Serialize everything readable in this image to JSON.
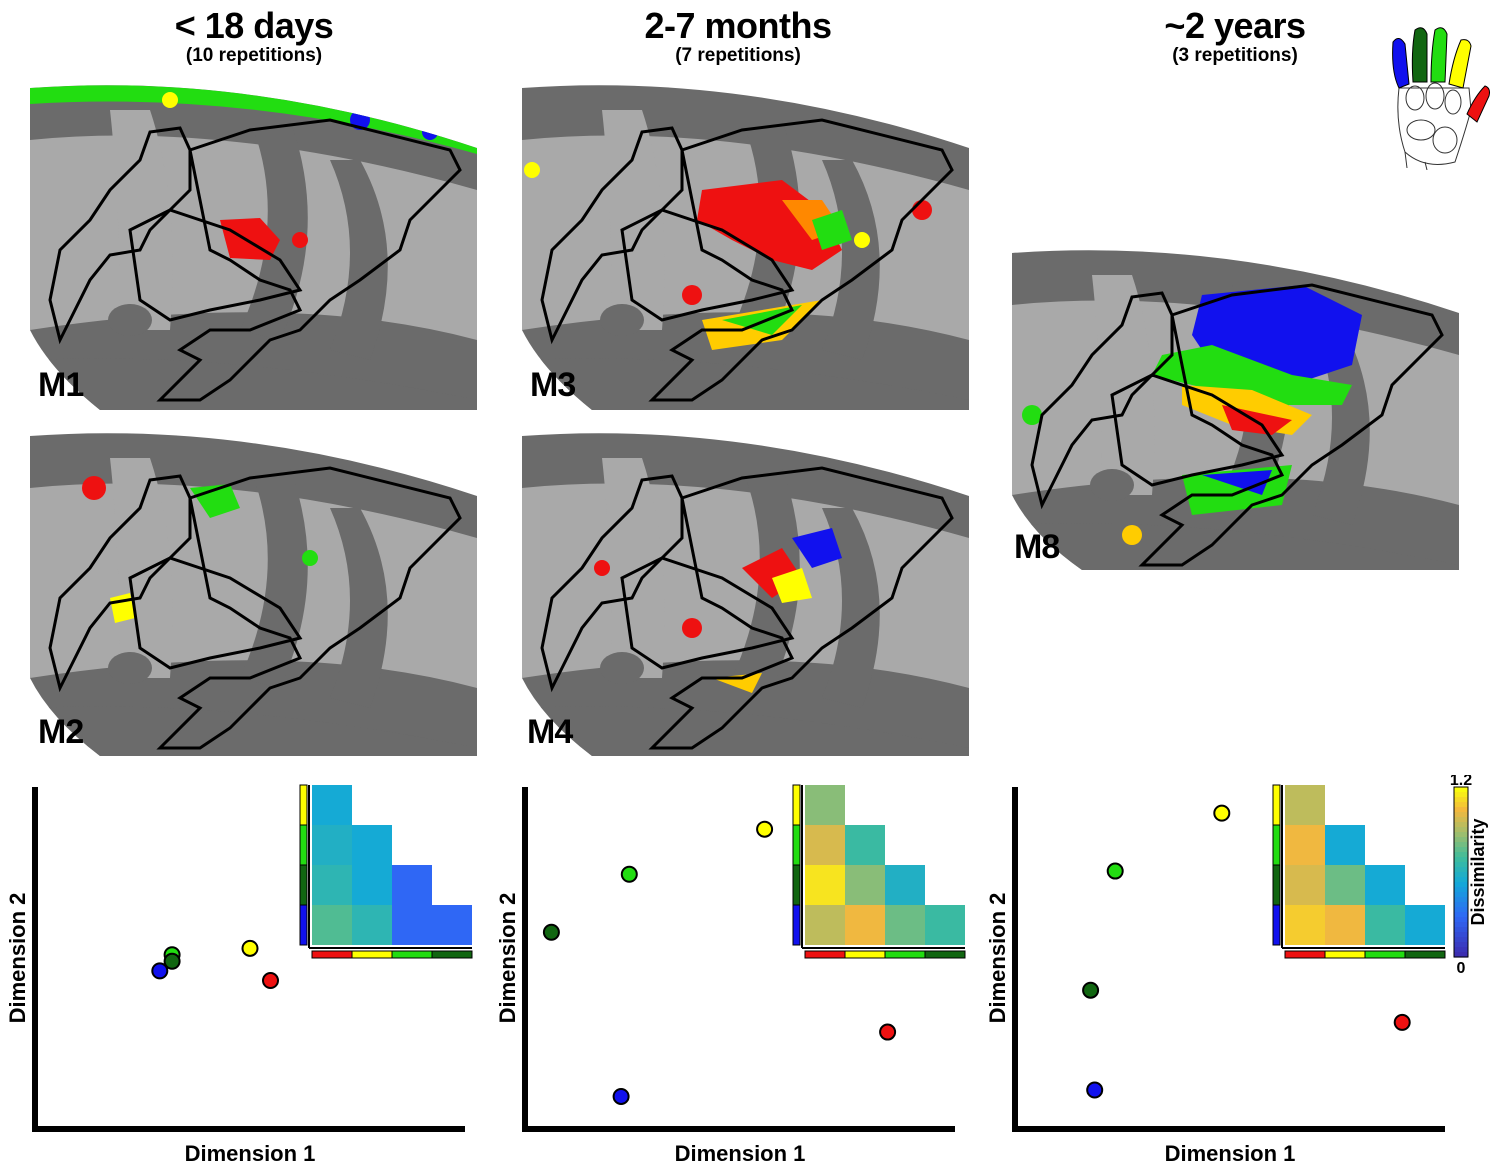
{
  "columns": [
    {
      "title": "< 18 days",
      "subtitle": "(10 repetitions)"
    },
    {
      "title": "2-7 months",
      "subtitle": "(7 repetitions)"
    },
    {
      "title": "~2 years",
      "subtitle": "(3 repetitions)"
    }
  ],
  "brains": [
    {
      "id": "m1",
      "label": "M1"
    },
    {
      "id": "m2",
      "label": "M2"
    },
    {
      "id": "m3",
      "label": "M3"
    },
    {
      "id": "m4",
      "label": "M4"
    },
    {
      "id": "m8",
      "label": "M8"
    }
  ],
  "colors": {
    "d1": "#ee1111",
    "d2": "#ffff00",
    "d3": "#22dd11",
    "d4": "#116611",
    "d5": "#1111ee",
    "cortex_light": "#a9a9a9",
    "cortex_dark": "#6b6b6b"
  },
  "colorbar": {
    "label": "Dissimilarity",
    "max": "1.2",
    "min": "0"
  },
  "chart_data": [
    {
      "type": "scatter",
      "xlabel": "Dimension 1",
      "ylabel": "Dimension 2",
      "xlim": [
        0,
        100
      ],
      "ylim": [
        0,
        100
      ],
      "points": [
        {
          "digit": "d1",
          "x": 55,
          "y": 43
        },
        {
          "digit": "d2",
          "x": 50,
          "y": 53
        },
        {
          "digit": "d3",
          "x": 31,
          "y": 51
        },
        {
          "digit": "d4",
          "x": 31,
          "y": 49
        },
        {
          "digit": "d5",
          "x": 28,
          "y": 46
        }
      ],
      "rdm": [
        [
          0.55
        ],
        [
          0.6,
          0.55
        ],
        [
          0.65,
          0.55,
          0.3
        ],
        [
          0.75,
          0.65,
          0.3,
          0.3
        ]
      ]
    },
    {
      "type": "scatter",
      "xlabel": "Dimension 1",
      "ylabel": "Dimension 2",
      "xlim": [
        0,
        100
      ],
      "ylim": [
        0,
        100
      ],
      "points": [
        {
          "digit": "d1",
          "x": 86,
          "y": 27
        },
        {
          "digit": "d2",
          "x": 56,
          "y": 90
        },
        {
          "digit": "d3",
          "x": 23,
          "y": 76
        },
        {
          "digit": "d4",
          "x": 4,
          "y": 58
        },
        {
          "digit": "d5",
          "x": 21,
          "y": 7
        }
      ],
      "rdm": [
        [
          0.85
        ],
        [
          1.0,
          0.7
        ],
        [
          1.15,
          0.85,
          0.6
        ],
        [
          0.95,
          1.05,
          0.8,
          0.7
        ]
      ]
    },
    {
      "type": "scatter",
      "xlabel": "Dimension 1",
      "ylabel": "Dimension 2",
      "xlim": [
        0,
        100
      ],
      "ylim": [
        0,
        100
      ],
      "points": [
        {
          "digit": "d1",
          "x": 92,
          "y": 30
        },
        {
          "digit": "d2",
          "x": 48,
          "y": 95
        },
        {
          "digit": "d3",
          "x": 22,
          "y": 77
        },
        {
          "digit": "d4",
          "x": 16,
          "y": 40
        },
        {
          "digit": "d5",
          "x": 17,
          "y": 9
        }
      ],
      "rdm": [
        [
          0.95
        ],
        [
          1.05,
          0.55
        ],
        [
          1.0,
          0.8,
          0.55
        ],
        [
          1.1,
          1.05,
          0.7,
          0.55
        ]
      ]
    }
  ]
}
